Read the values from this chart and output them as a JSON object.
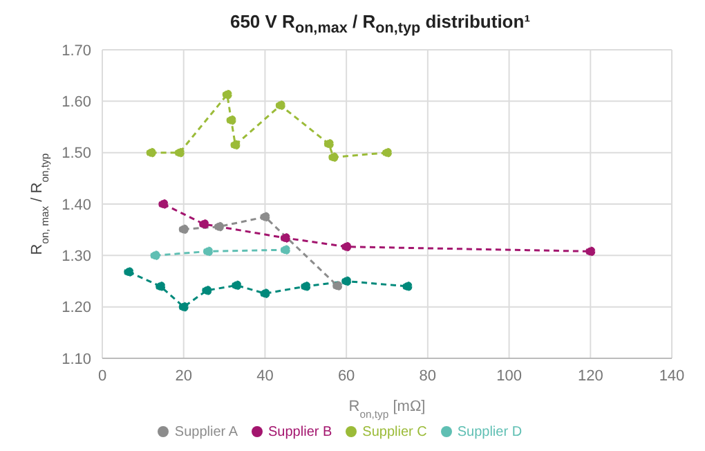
{
  "chart_data": {
    "type": "line",
    "title": "650 V R$_{on,max}$ / R$_{on,typ}$ distribution¹",
    "xlabel": "R$_{on,typ}$ [mΩ]",
    "ylabel": "R$_{on, max}$ / R$_{on,typ}$",
    "xlim": [
      0,
      140
    ],
    "xticks": [
      0,
      20,
      40,
      60,
      80,
      100,
      120,
      140
    ],
    "ylim": [
      1.1,
      1.7
    ],
    "yticks": [
      {
        "value": 1.1,
        "label": "1.10"
      },
      {
        "value": 1.2,
        "label": "1.20"
      },
      {
        "value": 1.3,
        "label": "1.30"
      },
      {
        "value": 1.4,
        "label": "1.40"
      },
      {
        "value": 1.5,
        "label": "1.50"
      },
      {
        "value": 1.6,
        "label": "1.60"
      },
      {
        "value": 1.7,
        "label": "1.70"
      }
    ],
    "grid": true,
    "legend": "bottom",
    "marker": "circle",
    "line_style": "dashed",
    "series": [
      {
        "color": "#00897b",
        "x": [
          6.5,
          14.3,
          20,
          25.7,
          33,
          40,
          50,
          60,
          75
        ],
        "values": [
          1.268,
          1.24,
          1.2,
          1.232,
          1.242,
          1.226,
          1.24,
          1.25,
          1.24
        ]
      },
      {
        "name": "Supplier A",
        "color": "#8c8c8c",
        "x": [
          20,
          28.7,
          40,
          57.8
        ],
        "values": [
          1.351,
          1.356,
          1.375,
          1.241
        ]
      },
      {
        "name": "Supplier B",
        "color": "#a3156e",
        "x": [
          15,
          25,
          45,
          60,
          120
        ],
        "values": [
          1.4,
          1.361,
          1.334,
          1.317,
          1.308
        ]
      },
      {
        "name": "Supplier C",
        "color": "#9bbb38",
        "x": [
          12,
          19,
          30.7,
          31.7,
          32.7,
          43.8,
          55.7,
          56.8,
          70
        ],
        "values": [
          1.5,
          1.5,
          1.613,
          1.563,
          1.515,
          1.592,
          1.517,
          1.491,
          1.5
        ]
      },
      {
        "name": "Supplier D",
        "color": "#5fbfb3",
        "x": [
          13,
          26,
          45
        ],
        "values": [
          1.3,
          1.308,
          1.311
        ]
      }
    ]
  }
}
